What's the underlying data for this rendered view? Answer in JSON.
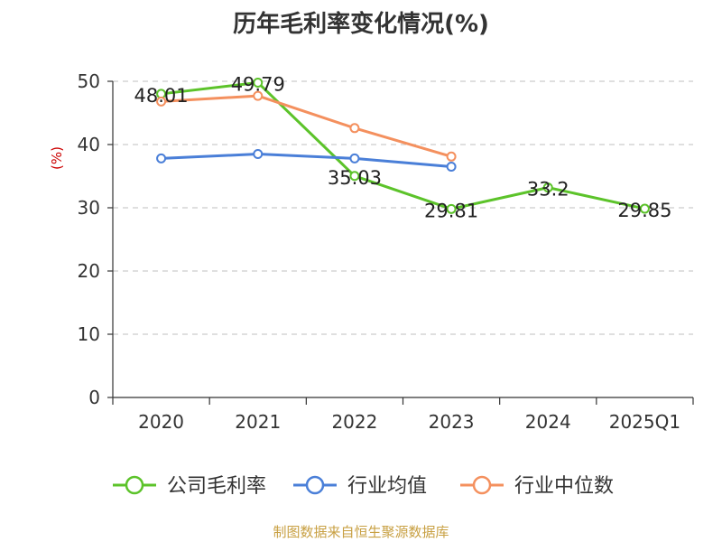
{
  "chart_data": {
    "type": "line",
    "title": "历年毛利率变化情况(%)",
    "ylabel": "(%)",
    "xlabel": "",
    "ylim": [
      0,
      50
    ],
    "yticks": [
      0,
      10,
      20,
      30,
      40,
      50
    ],
    "grid": true,
    "legend_position": "bottom",
    "categories": [
      "2020",
      "2021",
      "2022",
      "2023",
      "2024",
      "2025Q1"
    ],
    "series": [
      {
        "name": "公司毛利率",
        "color": "#5cc32a",
        "values": [
          48.01,
          49.79,
          35.03,
          29.81,
          33.2,
          29.85
        ],
        "labels": [
          "48.01",
          "49.79",
          "35.03",
          "29.81",
          "33.2",
          "29.85"
        ]
      },
      {
        "name": "行业均值",
        "color": "#4a7fd8",
        "values": [
          37.8,
          38.5,
          37.8,
          36.5,
          null,
          null
        ]
      },
      {
        "name": "行业中位数",
        "color": "#f4905e",
        "values": [
          46.8,
          47.7,
          42.6,
          38.1,
          null,
          null
        ]
      }
    ]
  },
  "source_note": "制图数据来自恒生聚源数据库",
  "colors": {
    "grid": "#cccccc",
    "axis": "#333333",
    "ylabel": "#cc0000",
    "source": "#c8a043"
  }
}
